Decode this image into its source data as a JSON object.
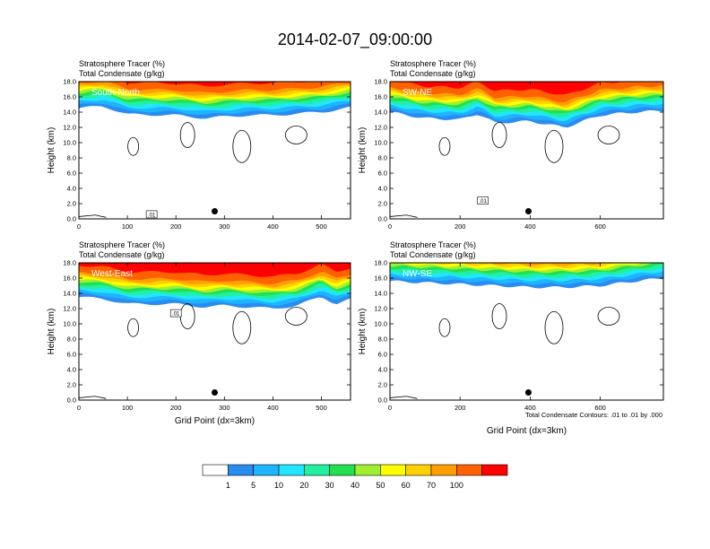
{
  "title": "2014-02-07_09:00:00",
  "colors": [
    "#ffffff",
    "#2b8cf0",
    "#1eb4ff",
    "#22e6ff",
    "#20f0a0",
    "#22e050",
    "#a0f030",
    "#ffff00",
    "#ffd000",
    "#ffa000",
    "#ff6000",
    "#ff0000"
  ],
  "colorbar": {
    "labels": [
      "1",
      "5",
      "10",
      "20",
      "30",
      "40",
      "50",
      "60",
      "70",
      "100"
    ]
  },
  "footnote": "Total Condensate Contours: .01 to .01 by .000",
  "chart_data": [
    {
      "type": "heatmap",
      "label": "South-North",
      "title_line1": "Stratosphere Tracer   (%)",
      "title_line2": "Total Condensate   (g/kg)",
      "ylabel": "Height (km)",
      "xlabel": "",
      "xlim": [
        0,
        560
      ],
      "ylim": [
        0,
        18
      ],
      "xticks": [
        0,
        100,
        200,
        300,
        400,
        500
      ],
      "yticks": [
        0,
        2,
        4,
        6,
        8,
        10,
        12,
        14,
        16,
        18
      ],
      "marker_x": 280,
      "marker_height": 1.0,
      "contour_label": ".01",
      "contour_label_x": 150,
      "contour_label_y": 0.6,
      "tracer_band_heights": [
        {
          "x": [
            0,
            50,
            100,
            200,
            260,
            300,
            350,
            400,
            450,
            500,
            560
          ],
          "base": [
            14.5,
            14.8,
            13.7,
            13.6,
            13.2,
            13.4,
            13.6,
            13.6,
            13.8,
            14.0,
            14.6
          ]
        }
      ]
    },
    {
      "type": "heatmap",
      "label": "SW-NE",
      "title_line1": "Stratosphere Tracer   (%)",
      "title_line2": "Total Condensate   (g/kg)",
      "ylabel": "Height (km)",
      "xlabel": "",
      "xlim": [
        0,
        780
      ],
      "ylim": [
        0,
        18
      ],
      "xticks": [
        0,
        200,
        400,
        600
      ],
      "yticks": [
        0,
        2,
        4,
        6,
        8,
        10,
        12,
        14,
        16,
        18
      ],
      "marker_x": 395,
      "marker_height": 1.0,
      "contour_label": ".01",
      "contour_label_x": 265,
      "contour_label_y": 2.4,
      "tracer_band_heights": [
        {
          "x": [
            0,
            100,
            200,
            250,
            300,
            400,
            500,
            600,
            700,
            780
          ],
          "base": [
            14.0,
            13.2,
            13.0,
            13.8,
            12.6,
            12.8,
            12.0,
            13.6,
            14.0,
            14.2
          ]
        }
      ]
    },
    {
      "type": "heatmap",
      "label": "West-East",
      "title_line1": "Stratosphere Tracer   (%)",
      "title_line2": "Total Condensate   (g/kg)",
      "ylabel": "Height (km)",
      "xlabel": "Grid Point (dx=3km)",
      "xlim": [
        0,
        560
      ],
      "ylim": [
        0,
        18
      ],
      "xticks": [
        0,
        100,
        200,
        300,
        400,
        500
      ],
      "yticks": [
        0,
        2,
        4,
        6,
        8,
        10,
        12,
        14,
        16,
        18
      ],
      "marker_x": 280,
      "marker_height": 1.0,
      "contour_label": ".01",
      "contour_label_x": 200,
      "contour_label_y": 11.4,
      "tracer_band_heights": [
        {
          "x": [
            0,
            50,
            100,
            200,
            260,
            300,
            400,
            450,
            500,
            530,
            560
          ],
          "base": [
            13.5,
            13.3,
            12.6,
            12.6,
            12.2,
            12.4,
            12.0,
            12.4,
            13.6,
            12.6,
            13.2
          ]
        }
      ]
    },
    {
      "type": "heatmap",
      "label": "NW-SE",
      "title_line1": "Stratosphere Tracer   (%)",
      "title_line2": "Total Condensate   (g/kg)",
      "ylabel": "Height (km)",
      "xlabel": "Grid Point (dx=3km)",
      "xlim": [
        0,
        780
      ],
      "ylim": [
        0,
        18
      ],
      "xticks": [
        0,
        200,
        400,
        600
      ],
      "yticks": [
        0,
        2,
        4,
        6,
        8,
        10,
        12,
        14,
        16,
        18
      ],
      "marker_x": 395,
      "marker_height": 1.0,
      "contour_label": "",
      "contour_label_x": 0,
      "contour_label_y": 0,
      "tracer_band_heights": [
        {
          "x": [
            0,
            100,
            200,
            300,
            400,
            500,
            600,
            700,
            780
          ],
          "base": [
            15.6,
            15.4,
            15.2,
            15.0,
            14.8,
            14.8,
            15.0,
            15.6,
            16.0
          ]
        }
      ]
    }
  ]
}
